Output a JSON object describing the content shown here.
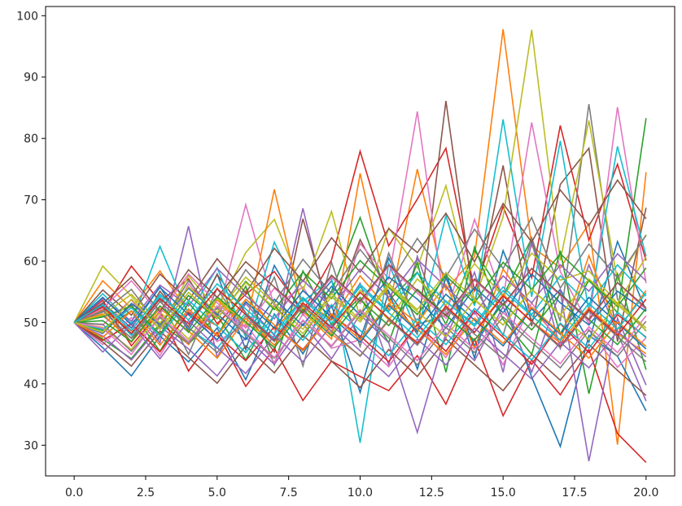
{
  "chart_data": {
    "type": "line",
    "title": "",
    "xlabel": "",
    "ylabel": "",
    "xlim": [
      -1.0,
      21.0
    ],
    "ylim": [
      25.0,
      101.5
    ],
    "grid": false,
    "legend": "none",
    "x": [
      0,
      1,
      2,
      3,
      4,
      5,
      6,
      7,
      8,
      9,
      10,
      11,
      12,
      13,
      14,
      15,
      16,
      17,
      18,
      19,
      20
    ],
    "x_ticks": [
      {
        "value": 0.0,
        "label": "0.0"
      },
      {
        "value": 2.5,
        "label": "2.5"
      },
      {
        "value": 5.0,
        "label": "5.0"
      },
      {
        "value": 7.5,
        "label": "7.5"
      },
      {
        "value": 10.0,
        "label": "10.0"
      },
      {
        "value": 12.5,
        "label": "12.5"
      },
      {
        "value": 15.0,
        "label": "15.0"
      },
      {
        "value": 17.5,
        "label": "17.5"
      },
      {
        "value": 20.0,
        "label": "20.0"
      }
    ],
    "y_ticks": [
      {
        "value": 30,
        "label": "30"
      },
      {
        "value": 40,
        "label": "40"
      },
      {
        "value": 50,
        "label": "50"
      },
      {
        "value": 60,
        "label": "60"
      },
      {
        "value": 70,
        "label": "70"
      },
      {
        "value": 80,
        "label": "80"
      },
      {
        "value": 90,
        "label": "90"
      },
      {
        "value": 100,
        "label": "100"
      }
    ],
    "palette": [
      "#1f77b4",
      "#ff7f0e",
      "#2ca02c",
      "#d62728",
      "#9467bd",
      "#8c564b",
      "#e377c2",
      "#7f7f7f",
      "#bcbd22",
      "#17becf"
    ],
    "series": [
      {
        "values": [
          50,
          53.2,
          49.1,
          55.8,
          48.7,
          57.9,
          45.6,
          59.3,
          51.2,
          56.8,
          47.3,
          60.5,
          49.8,
          58.1,
          44.2,
          61.7,
          50.3,
          55.4,
          46.8,
          63.2,
          51.9
        ]
      },
      {
        "values": [
          50,
          56.8,
          52.3,
          58.4,
          51.7,
          49.5,
          55.2,
          48.9,
          53.8,
          50.4,
          57.6,
          52.1,
          75.0,
          55.3,
          60.7,
          97.8,
          62.4,
          58.9,
          66.1,
          30.1,
          74.5
        ]
      },
      {
        "values": [
          50,
          47.3,
          44.1,
          49.8,
          46.5,
          51.2,
          43.9,
          52.8,
          47.6,
          55.1,
          67.1,
          53.6,
          58.2,
          49.7,
          61.8,
          54.3,
          63.7,
          48.1,
          56.9,
          51.6,
          83.3
        ]
      },
      {
        "values": [
          50,
          51.8,
          59.2,
          53.4,
          57.1,
          49.8,
          54.6,
          58.3,
          51.9,
          60.2,
          77.9,
          62.5,
          70.1,
          78.4,
          55.2,
          68.9,
          57.3,
          82.1,
          63.4,
          75.8,
          60.1
        ]
      },
      {
        "values": [
          50,
          48.2,
          52.9,
          46.7,
          65.7,
          44.3,
          53.1,
          47.9,
          68.6,
          49.2,
          56.4,
          43.1,
          60.8,
          47.5,
          58.2,
          41.9,
          63.1,
          45.8,
          59.4,
          48.3,
          37.2
        ]
      },
      {
        "values": [
          50,
          52.4,
          46.8,
          55.1,
          49.3,
          57.8,
          51.6,
          45.2,
          66.9,
          50.7,
          63.5,
          54.9,
          48.1,
          86.1,
          52.8,
          75.6,
          49.4,
          72.5,
          78.4,
          46.9,
          68.7
        ]
      },
      {
        "values": [
          50,
          49.6,
          53.7,
          47.2,
          56.3,
          50.9,
          69.2,
          52.6,
          55.8,
          48.4,
          62.9,
          57.1,
          84.4,
          51.2,
          66.8,
          53.9,
          82.6,
          58.3,
          49.7,
          85.1,
          56.4
        ]
      },
      {
        "values": [
          50,
          51.1,
          47.5,
          53.9,
          44.8,
          55.6,
          48.2,
          57.4,
          42.9,
          59.8,
          46.1,
          61.3,
          49.7,
          51.2,
          55.7,
          47.9,
          63.8,
          50.2,
          85.6,
          53.8,
          48.6
        ]
      },
      {
        "values": [
          50,
          59.2,
          54.3,
          48.9,
          57.6,
          52.1,
          61.4,
          66.8,
          55.2,
          68.1,
          50.7,
          65.4,
          58.9,
          72.3,
          53.6,
          67.2,
          97.7,
          60.1,
          82.9,
          56.8,
          64.3
        ]
      },
      {
        "values": [
          50,
          54.7,
          49.8,
          62.4,
          51.3,
          58.9,
          47.6,
          63.1,
          53.4,
          57.2,
          30.4,
          59.6,
          48.3,
          67.4,
          52.7,
          83.1,
          54.2,
          79.6,
          51.9,
          78.7,
          60.8
        ]
      },
      {
        "values": [
          50,
          45.9,
          41.3,
          47.8,
          43.6,
          49.1,
          40.7,
          51.4,
          44.9,
          52.8,
          38.6,
          55.1,
          42.4,
          57.3,
          46.2,
          53.8,
          41.1,
          29.8,
          47.9,
          44.5,
          35.6
        ]
      },
      {
        "values": [
          50,
          52.1,
          48.6,
          50.9,
          46.4,
          53.7,
          49.2,
          71.7,
          51.8,
          47.3,
          74.3,
          53.6,
          49.9,
          56.2,
          45.8,
          58.7,
          52.3,
          47.1,
          60.9,
          48.8,
          55.2
        ]
      },
      {
        "values": [
          50,
          48.7,
          51.9,
          45.3,
          53.2,
          47.8,
          55.9,
          43.1,
          58.4,
          49.6,
          54.1,
          46.7,
          59.8,
          41.9,
          62.3,
          50.5,
          44.8,
          61.7,
          38.4,
          57.9,
          42.3
        ]
      },
      {
        "values": [
          50,
          53.6,
          46.2,
          51.8,
          42.1,
          48.4,
          39.6,
          45.8,
          37.3,
          43.7,
          41.2,
          38.9,
          44.6,
          36.7,
          47.3,
          34.8,
          43.9,
          38.2,
          45.6,
          31.9,
          27.2
        ]
      },
      {
        "values": [
          50,
          47.8,
          43.9,
          49.4,
          45.7,
          41.3,
          47.6,
          43.2,
          49.8,
          44.1,
          51.3,
          46.7,
          32.1,
          48.3,
          43.8,
          52.6,
          41.9,
          55.1,
          27.4,
          50.7,
          39.8
        ]
      },
      {
        "values": [
          50,
          55.3,
          51.2,
          57.9,
          53.6,
          60.4,
          54.8,
          62.1,
          56.7,
          63.8,
          58.2,
          65.3,
          61.4,
          67.8,
          59.9,
          69.4,
          63.1,
          71.6,
          65.8,
          73.2,
          66.9
        ]
      },
      {
        "values": [
          50,
          46.4,
          50.8,
          44.6,
          52.1,
          46.9,
          49.7,
          43.5,
          51.4,
          45.8,
          47.2,
          42.8,
          49.6,
          44.3,
          51.8,
          43.1,
          53.2,
          46.4,
          48.9,
          42.7,
          47.5
        ]
      },
      {
        "values": [
          50,
          51.7,
          55.4,
          49.3,
          56.8,
          51.1,
          58.6,
          53.2,
          60.3,
          54.7,
          61.9,
          56.1,
          63.7,
          57.4,
          65.2,
          58.8,
          67.1,
          55.6,
          62.8,
          57.3,
          64.2
        ]
      },
      {
        "values": [
          50,
          49.2,
          45.6,
          51.7,
          47.3,
          53.9,
          49.8,
          47.2,
          52.6,
          48.1,
          55.3,
          50.4,
          57.1,
          52.8,
          59.6,
          54.2,
          61.3,
          56.9,
          58.4,
          53.1,
          60.7
        ]
      },
      {
        "values": [
          50,
          52.8,
          47.9,
          54.3,
          49.1,
          45.8,
          51.6,
          47.4,
          53.9,
          49.2,
          56.2,
          51.8,
          58.1,
          53.4,
          49.7,
          55.8,
          51.3,
          57.6,
          52.9,
          59.4,
          54.3
        ]
      },
      {
        "values": [
          50,
          48.3,
          53.1,
          49.7,
          55.6,
          51.4,
          47.2,
          53.8,
          49.5,
          55.9,
          51.2,
          57.4,
          53.8,
          49.1,
          55.7,
          51.6,
          57.9,
          53.2,
          49.6,
          55.1,
          51.8
        ]
      },
      {
        "values": [
          50,
          51.4,
          46.8,
          52.3,
          48.6,
          44.2,
          50.7,
          46.3,
          52.9,
          48.1,
          44.6,
          50.3,
          46.8,
          52.7,
          48.4,
          54.6,
          50.1,
          46.7,
          52.4,
          48.2,
          44.9
        ]
      },
      {
        "values": [
          50,
          50.9,
          52.7,
          48.1,
          54.4,
          50.6,
          56.7,
          52.1,
          58.2,
          53.9,
          60.1,
          55.7,
          51.3,
          57.6,
          53.2,
          59.8,
          55.4,
          61.2,
          56.8,
          52.6,
          58.9
        ]
      },
      {
        "values": [
          50,
          47.1,
          49.8,
          45.2,
          51.6,
          47.9,
          43.8,
          49.3,
          45.6,
          51.2,
          47.8,
          43.6,
          49.7,
          45.3,
          51.9,
          47.6,
          43.2,
          49.8,
          45.1,
          51.3,
          47.6
        ]
      },
      {
        "values": [
          50,
          53.9,
          50.2,
          56.1,
          52.7,
          58.8,
          54.3,
          50.6,
          56.9,
          52.4,
          58.7,
          54.1,
          60.3,
          55.8,
          51.4,
          57.6,
          53.2,
          59.4,
          55.1,
          61.2,
          56.8
        ]
      },
      {
        "values": [
          50,
          46.8,
          42.9,
          48.6,
          44.3,
          40.1,
          46.2,
          41.8,
          47.9,
          43.7,
          39.4,
          45.6,
          41.2,
          47.3,
          43.1,
          38.9,
          44.8,
          40.6,
          46.4,
          42.2,
          38.1
        ]
      },
      {
        "values": [
          50,
          52.3,
          56.8,
          51.4,
          57.9,
          53.2,
          49.1,
          55.6,
          51.3,
          57.4,
          53.1,
          59.2,
          54.8,
          50.7,
          56.9,
          52.6,
          58.8,
          54.4,
          50.3,
          56.5,
          52.1
        ]
      },
      {
        "values": [
          50,
          49.7,
          45.3,
          50.8,
          46.6,
          52.4,
          48.1,
          44.2,
          50.3,
          46.1,
          51.8,
          47.5,
          43.1,
          49.2,
          45.1,
          50.9,
          46.8,
          42.6,
          48.7,
          44.5,
          50.2
        ]
      },
      {
        "values": [
          50,
          51.2,
          54.6,
          49.9,
          55.8,
          51.6,
          57.4,
          53.1,
          48.9,
          54.7,
          50.5,
          56.3,
          52.1,
          58.1,
          53.8,
          49.6,
          55.4,
          51.2,
          57.1,
          52.9,
          48.7
        ]
      },
      {
        "values": [
          50,
          48.9,
          52.4,
          47.8,
          53.6,
          49.4,
          45.1,
          51.2,
          47.1,
          52.9,
          48.7,
          44.6,
          50.6,
          46.4,
          52.3,
          48.1,
          43.9,
          49.9,
          45.8,
          51.7,
          47.5
        ]
      },
      {
        "values": [
          50,
          54.1,
          49.6,
          55.7,
          51.3,
          47.2,
          53.4,
          49.1,
          55.2,
          50.9,
          46.8,
          52.8,
          48.6,
          54.6,
          50.4,
          46.2,
          52.2,
          48.1,
          54.1,
          49.9,
          45.7
        ]
      },
      {
        "values": [
          50,
          47.6,
          51.9,
          46.3,
          52.2,
          47.9,
          53.8,
          49.6,
          45.4,
          51.4,
          47.2,
          53.1,
          48.9,
          44.8,
          50.7,
          46.6,
          52.5,
          48.3,
          44.2,
          50.1,
          46.1
        ]
      },
      {
        "values": [
          50,
          50.3,
          46.9,
          52.7,
          48.4,
          54.2,
          50.1,
          45.9,
          52.1,
          47.8,
          53.7,
          49.5,
          55.4,
          51.2,
          47.1,
          53.1,
          48.8,
          54.7,
          50.5,
          46.4,
          52.3
        ]
      },
      {
        "values": [
          50,
          52.6,
          48.2,
          53.9,
          49.8,
          55.5,
          51.3,
          47.1,
          53.2,
          49.1,
          54.9,
          50.7,
          46.6,
          52.6,
          48.4,
          54.3,
          50.2,
          46.1,
          52.1,
          47.9,
          53.8
        ]
      },
      {
        "values": [
          50,
          45.2,
          49.7,
          44.1,
          50.3,
          45.9,
          41.7,
          47.9,
          43.6,
          49.6,
          45.4,
          41.2,
          47.3,
          43.1,
          49.1,
          44.9,
          40.8,
          46.8,
          42.6,
          48.6,
          44.4
        ]
      },
      {
        "values": [
          50,
          53.1,
          57.4,
          51.8,
          58.6,
          54.1,
          59.9,
          55.8,
          51.6,
          57.7,
          53.5,
          59.4,
          55.2,
          51.1,
          57.1,
          52.9,
          58.8,
          54.6,
          50.5,
          56.5,
          52.4
        ]
      },
      {
        "values": [
          50,
          49.1,
          44.8,
          51.2,
          46.9,
          52.7,
          48.5,
          44.3,
          50.4,
          46.2,
          52.1,
          47.9,
          43.8,
          49.8,
          45.6,
          51.6,
          47.4,
          43.3,
          49.3,
          45.1,
          51.1
        ]
      },
      {
        "values": [
          50,
          51.9,
          47.4,
          53.4,
          49.2,
          45.1,
          51.1,
          46.9,
          52.8,
          48.6,
          44.5,
          50.5,
          46.3,
          52.3,
          48.1,
          44.1,
          50.1,
          45.9,
          51.8,
          47.7,
          43.6
        ]
      },
      {
        "values": [
          50,
          48.4,
          53.8,
          48.9,
          54.9,
          50.7,
          56.5,
          52.4,
          48.2,
          54.2,
          50.1,
          55.9,
          51.8,
          47.7,
          53.7,
          49.6,
          55.4,
          51.3,
          47.2,
          53.2,
          49.1
        ]
      },
      {
        "values": [
          50,
          52.9,
          48.7,
          54.6,
          50.4,
          56.3,
          52.2,
          48.1,
          54.1,
          49.9,
          55.8,
          51.6,
          47.5,
          53.5,
          49.4,
          55.2,
          51.1,
          47.1,
          53.1,
          48.9,
          54.8
        ]
      }
    ]
  }
}
